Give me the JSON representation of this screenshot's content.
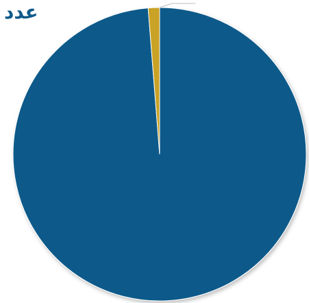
{
  "chart_data": {
    "type": "pie",
    "title": "عدد",
    "start_angle_deg": 0,
    "direction": "clockwise",
    "legend": "none",
    "series": [
      {
        "values": [
          98.75,
          1.25,
          0.0
        ],
        "colors": [
          "#0e5a8a",
          "#c9a227",
          "#bdbdbd"
        ]
      }
    ]
  }
}
